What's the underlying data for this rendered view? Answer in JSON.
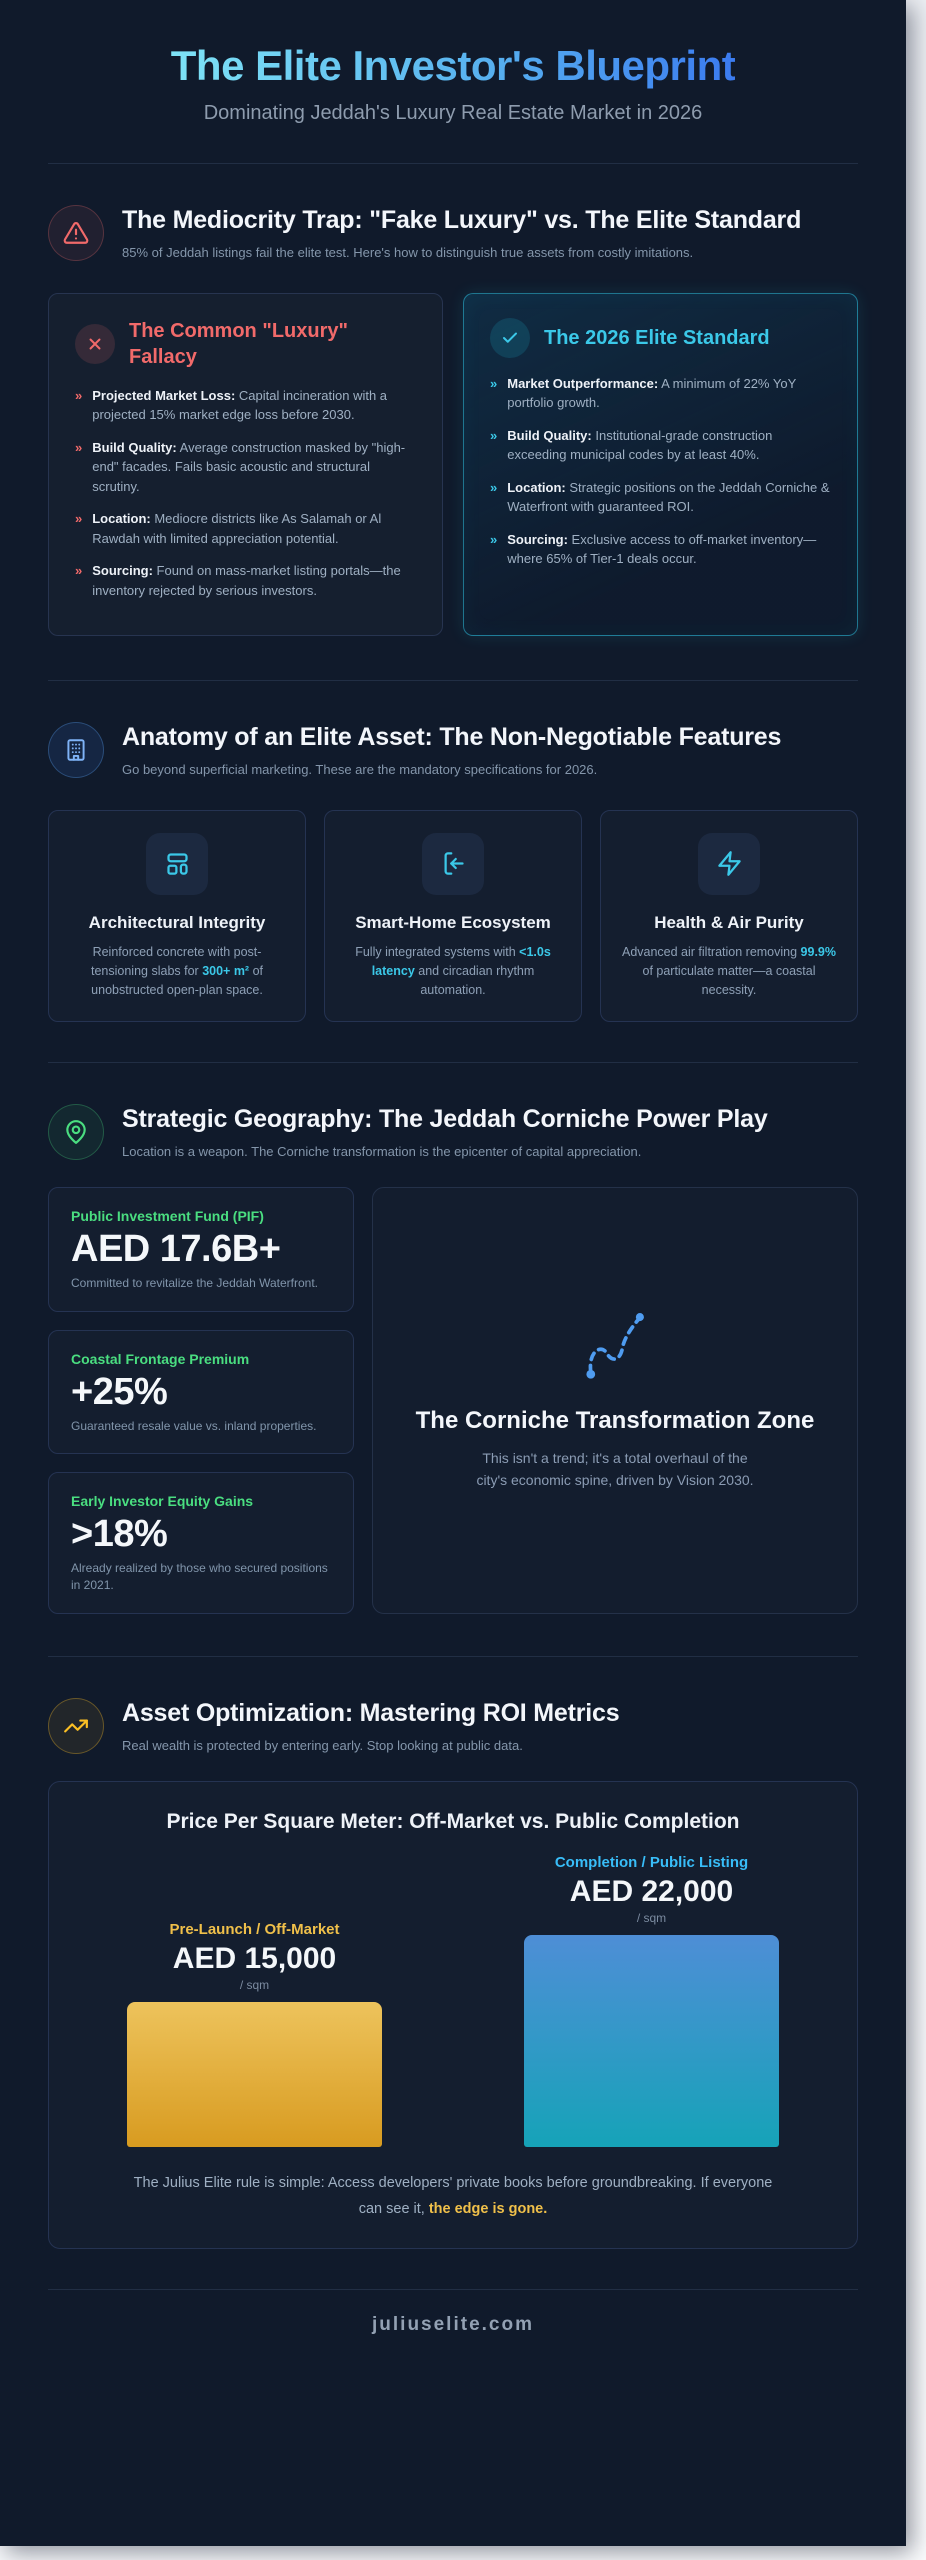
{
  "page": {
    "title": "The Elite Investor's Blueprint",
    "subtitle": "Dominating Jeddah's Luxury Real Estate Market in 2026",
    "footer": "juliuselite.com"
  },
  "colors": {
    "accent_red": "#f16a6a",
    "accent_cyan": "#3bc8e8",
    "accent_green": "#4ade80",
    "accent_amber": "#fbbf24",
    "accent_blue": "#38bdf8",
    "title_gradient_start": "#7ee3f6",
    "title_gradient_end": "#3b7bf0"
  },
  "mediocrity": {
    "heading": "The Mediocrity Trap: \"Fake Luxury\" vs. The Elite Standard",
    "subheading": "85% of Jeddah listings fail the elite test. Here's how to distinguish true assets from costly imitations.",
    "fallacy": {
      "title": "The Common \"Luxury\" Fallacy",
      "items": [
        {
          "label": "Projected Market Loss:",
          "text": " Capital incineration with a projected 15% market edge loss before 2030."
        },
        {
          "label": "Build Quality:",
          "text": " Average construction masked by \"high-end\" facades. Fails basic acoustic and structural scrutiny."
        },
        {
          "label": "Location:",
          "text": " Mediocre districts like As Salamah or Al Rawdah with limited appreciation potential."
        },
        {
          "label": "Sourcing:",
          "text": " Found on mass-market listing portals—the inventory rejected by serious investors."
        }
      ]
    },
    "elite": {
      "title": "The 2026 Elite Standard",
      "items": [
        {
          "label": "Market Outperformance:",
          "text": " A minimum of 22% YoY portfolio growth."
        },
        {
          "label": "Build Quality:",
          "text": " Institutional-grade construction exceeding municipal codes by at least 40%."
        },
        {
          "label": "Location:",
          "text": " Strategic positions on the Jeddah Corniche & Waterfront with guaranteed ROI."
        },
        {
          "label": "Sourcing:",
          "text": " Exclusive access to off-market inventory—where 65% of Tier-1 deals occur."
        }
      ]
    }
  },
  "anatomy": {
    "heading": "Anatomy of an Elite Asset: The Non-Negotiable Features",
    "subheading": "Go beyond superficial marketing. These are the mandatory specifications for 2026.",
    "features": [
      {
        "icon": "layout-columns-icon",
        "title": "Architectural Integrity",
        "text_before": "Reinforced concrete with post-tensioning slabs for ",
        "highlight": "300+ m²",
        "text_after": " of unobstructed open-plan space."
      },
      {
        "icon": "login-arrow-icon",
        "title": "Smart-Home Ecosystem",
        "text_before": "Fully integrated systems with ",
        "highlight": "<1.0s latency",
        "text_after": " and circadian rhythm automation."
      },
      {
        "icon": "zap-icon",
        "title": "Health & Air Purity",
        "text_before": "Advanced air filtration removing ",
        "highlight": "99.9%",
        "text_after": " of particulate matter—a coastal necessity."
      }
    ]
  },
  "geography": {
    "heading": "Strategic Geography: The Jeddah Corniche Power Play",
    "subheading": "Location is a weapon. The Corniche transformation is the epicenter of capital appreciation.",
    "stats": [
      {
        "label": "Public Investment Fund (PIF)",
        "value": "AED 17.6B+",
        "desc": "Committed to revitalize the Jeddah Waterfront."
      },
      {
        "label": "Coastal Frontage Premium",
        "value": "+25%",
        "desc": "Guaranteed resale value vs. inland properties."
      },
      {
        "label": "Early Investor Equity Gains",
        "value": ">18%",
        "desc": "Already realized by those who secured positions in 2021."
      }
    ],
    "zone": {
      "title": "The Corniche Transformation Zone",
      "desc_line1": "This isn't a trend; it's a total overhaul of the",
      "desc_line2": "city's economic spine, driven by Vision 2030."
    }
  },
  "roi": {
    "heading": "Asset Optimization: Mastering ROI Metrics",
    "subheading": "Real wealth is protected by entering early. Stop looking at public data.",
    "note_plain": "The Julius Elite rule is simple: Access developers' private books before groundbreaking. If everyone can see it, ",
    "note_highlight": "the edge is gone."
  },
  "chart_data": {
    "type": "bar",
    "title": "Price Per Square Meter: Off-Market vs. Public Completion",
    "categories": [
      "Pre-Launch / Off-Market",
      "Completion / Public Listing"
    ],
    "values": [
      15000,
      22000
    ],
    "value_labels": [
      "AED 15,000",
      "AED 22,000"
    ],
    "unit": "/ sqm",
    "currency": "AED",
    "ylim": [
      0,
      22000
    ],
    "grid": false,
    "legend_position": "labels-above-bars",
    "bar_colors": [
      "amber-gradient",
      "blue-gradient"
    ]
  }
}
